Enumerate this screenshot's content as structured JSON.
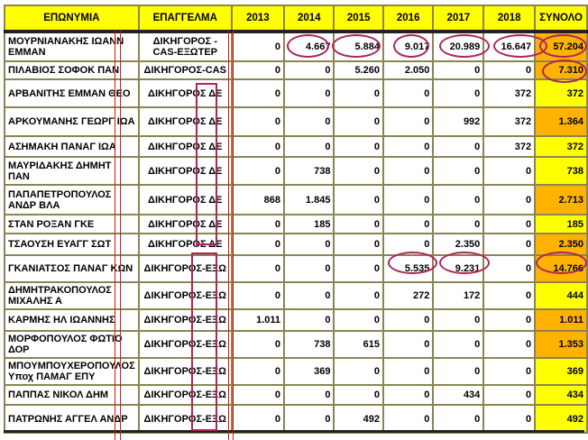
{
  "headers": [
    "ΕΠΩΝΥΜΙΑ",
    "ΕΠΑΓΓΕΛΜΑ",
    "2013",
    "2014",
    "2015",
    "2016",
    "2017",
    "2018",
    "ΣΥΝΟΛΟ"
  ],
  "colors": {
    "header": "#ffff00",
    "total": "#ffff00",
    "total_highlight": "#ffb300",
    "annotation": "#b0245a",
    "border": "#8b8455",
    "red_line": "#d01818"
  },
  "rows": [
    {
      "name": "ΜΟΥΡΝΙΑΝΑΚΗΣ ΙΩΑΝΝ ΕΜΜΑΝ",
      "occupation": "ΔΙΚΗΓΟΡΟΣ -CAS-ΕΞΩΤΕΡ",
      "values": [
        "0",
        "4.667",
        "5.884",
        "9.017",
        "20.989",
        "16.647"
      ],
      "total": "57.204",
      "highlight": true
    },
    {
      "name": "ΠΙΛΑΒΙΟΣ ΣΟΦΟΚ ΠΑΝ",
      "occupation": "ΔΙΚΗΓΟΡΟΣ-CAS",
      "values": [
        "0",
        "0",
        "5.260",
        "2.050",
        "0",
        "0"
      ],
      "total": "7.310",
      "highlight": true
    },
    {
      "name": "ΑΡΒΑΝΙΤΗΣ ΕΜΜΑΝ ΘΕΟ",
      "occupation": "ΔΙΚΗΓΟΡΟΣ ΔΕ",
      "values": [
        "0",
        "0",
        "0",
        "0",
        "0",
        "372"
      ],
      "total": "372",
      "highlight": false
    },
    {
      "name": "ΑΡΚΟΥΜΑΝΗΣ ΓΕΩΡΓ ΙΩΑ",
      "occupation": "ΔΙΚΗΓΟΡΟΣ ΔΕ",
      "values": [
        "0",
        "0",
        "0",
        "0",
        "992",
        "372"
      ],
      "total": "1.364",
      "highlight": true
    },
    {
      "name": "ΑΣΗΜΑΚΗ ΠΑΝΑΓ ΙΩΑ",
      "occupation": "ΔΙΚΗΓΟΡΟΣ ΔΕ",
      "values": [
        "0",
        "0",
        "0",
        "0",
        "0",
        "372"
      ],
      "total": "372",
      "highlight": false
    },
    {
      "name": "ΜΑΥΡΙΔΑΚΗΣ ΔΗΜΗΤ ΠΑΝ",
      "occupation": "ΔΙΚΗΓΟΡΟΣ ΔΕ",
      "values": [
        "0",
        "738",
        "0",
        "0",
        "0",
        "0"
      ],
      "total": "738",
      "highlight": false
    },
    {
      "name": "ΠΑΠΑΠΕΤΡΟΠΟΥΛΟΣ ΑΝΔΡ ΒΛΑ",
      "occupation": "ΔΙΚΗΓΟΡΟΣ ΔΕ",
      "values": [
        "868",
        "1.845",
        "0",
        "0",
        "0",
        "0"
      ],
      "total": "2.713",
      "highlight": true
    },
    {
      "name": "ΣΤΑΝ ΡΟΞΑΝ ΓΚΕ",
      "occupation": "ΔΙΚΗΓΟΡΟΣ ΔΕ",
      "values": [
        "0",
        "185",
        "0",
        "0",
        "0",
        "0"
      ],
      "total": "185",
      "highlight": false
    },
    {
      "name": "ΤΣΑΟΥΣΗ ΕΥΑΓΓ ΣΩΤ",
      "occupation": "ΔΙΚΗΓΟΡΟΣ ΔΕ",
      "values": [
        "0",
        "0",
        "0",
        "0",
        "2.350",
        "0"
      ],
      "total": "2.350",
      "highlight": true
    },
    {
      "name": "ΓΚΑΝΙΑΤΣΟΣ ΠΑΝΑΓ ΚΩΝ",
      "occupation": "ΔΙΚΗΓΟΡΟΣ-ΕΞΩ",
      "values": [
        "0",
        "0",
        "0",
        "5.535",
        "9.231",
        "0"
      ],
      "total": "14.766",
      "highlight": true
    },
    {
      "name": "ΔΗΜΗΤΡΑΚΟΠΟΥΛΟΣ ΜΙΧΑΛΗΣ Α",
      "occupation": "ΔΙΚΗΓΟΡΟΣ-ΕΞΩ",
      "values": [
        "0",
        "0",
        "0",
        "272",
        "172",
        "0"
      ],
      "total": "444",
      "highlight": false
    },
    {
      "name": "ΚΑΡΜΗΣ ΗΛ ΙΩΑΝΝΗΣ",
      "occupation": "ΔΙΚΗΓΟΡΟΣ-ΕΞΩ",
      "values": [
        "1.011",
        "0",
        "0",
        "0",
        "0",
        "0"
      ],
      "total": "1.011",
      "highlight": true
    },
    {
      "name": "ΜΟΡΦΟΠΟΥΛΟΣ ΦΩΤΙΟ ΔΟΡ",
      "occupation": "ΔΙΚΗΓΟΡΟΣ-ΕΞΩ",
      "values": [
        "0",
        "738",
        "615",
        "0",
        "0",
        "0"
      ],
      "total": "1.353",
      "highlight": true
    },
    {
      "name": "ΜΠΟΥΜΠΟΥΧΕΡΟΠΟΥΛΟΣ Υποχ ΠΑΜΑΓ ΕΠΥ",
      "occupation": "ΔΙΚΗΓΟΡΟΣ-ΕΞΩ",
      "values": [
        "0",
        "369",
        "0",
        "0",
        "0",
        "0"
      ],
      "total": "369",
      "highlight": false
    },
    {
      "name": "ΠΑΠΠΑΣ ΝΙΚΟΛ ΔΗΜ",
      "occupation": "ΔΙΚΗΓΟΡΟΣ-ΕΞΩ",
      "values": [
        "0",
        "0",
        "0",
        "0",
        "434",
        "0"
      ],
      "total": "434",
      "highlight": false
    },
    {
      "name": "ΠΑΤΡΩΝΗΣ ΑΓΓΕΛ ΑΝΔΡ",
      "occupation": "ΔΙΚΗΓΟΡΟΣ-ΕΞΩ",
      "values": [
        "0",
        "0",
        "492",
        "0",
        "0",
        "0"
      ],
      "total": "492",
      "highlight": false
    }
  ]
}
